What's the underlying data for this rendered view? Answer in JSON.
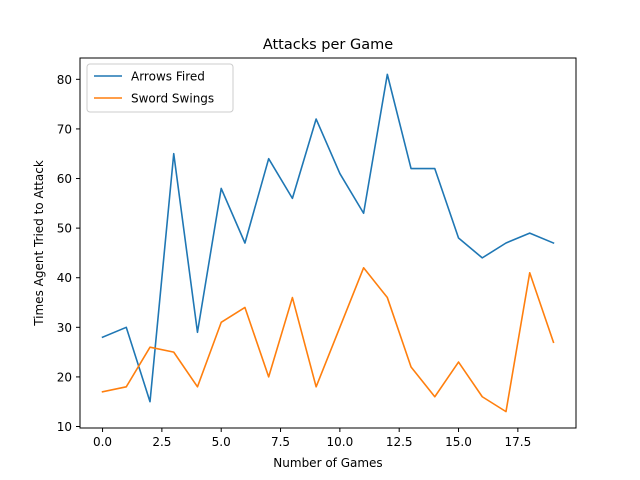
{
  "chart_data": {
    "type": "line",
    "title": "Attacks per Game",
    "xlabel": "Number of Games",
    "ylabel": "Times Agent Tried to Attack",
    "x": [
      0,
      1,
      2,
      3,
      4,
      5,
      6,
      7,
      8,
      9,
      10,
      11,
      12,
      13,
      14,
      15,
      16,
      17,
      18,
      19
    ],
    "xlim": [
      -0.95,
      19.95
    ],
    "ylim": [
      9.7,
      84.3
    ],
    "xticks": [
      0.0,
      2.5,
      5.0,
      7.5,
      10.0,
      12.5,
      15.0,
      17.5
    ],
    "xtick_labels": [
      "0.0",
      "2.5",
      "5.0",
      "7.5",
      "10.0",
      "12.5",
      "15.0",
      "17.5"
    ],
    "yticks": [
      10,
      20,
      30,
      40,
      50,
      60,
      70,
      80
    ],
    "ytick_labels": [
      "10",
      "20",
      "30",
      "40",
      "50",
      "60",
      "70",
      "80"
    ],
    "grid": false,
    "legend_position": "upper-left",
    "series": [
      {
        "name": "Arrows Fired",
        "color": "#1f77b4",
        "values": [
          28,
          30,
          15,
          65,
          29,
          58,
          47,
          64,
          56,
          72,
          61,
          53,
          81,
          62,
          62,
          48,
          44,
          47,
          49,
          47
        ]
      },
      {
        "name": "Sword Swings",
        "color": "#ff7f0e",
        "values": [
          17,
          18,
          26,
          25,
          18,
          31,
          34,
          20,
          36,
          18,
          30,
          42,
          36,
          22,
          16,
          23,
          16,
          13,
          41,
          27
        ]
      }
    ]
  }
}
